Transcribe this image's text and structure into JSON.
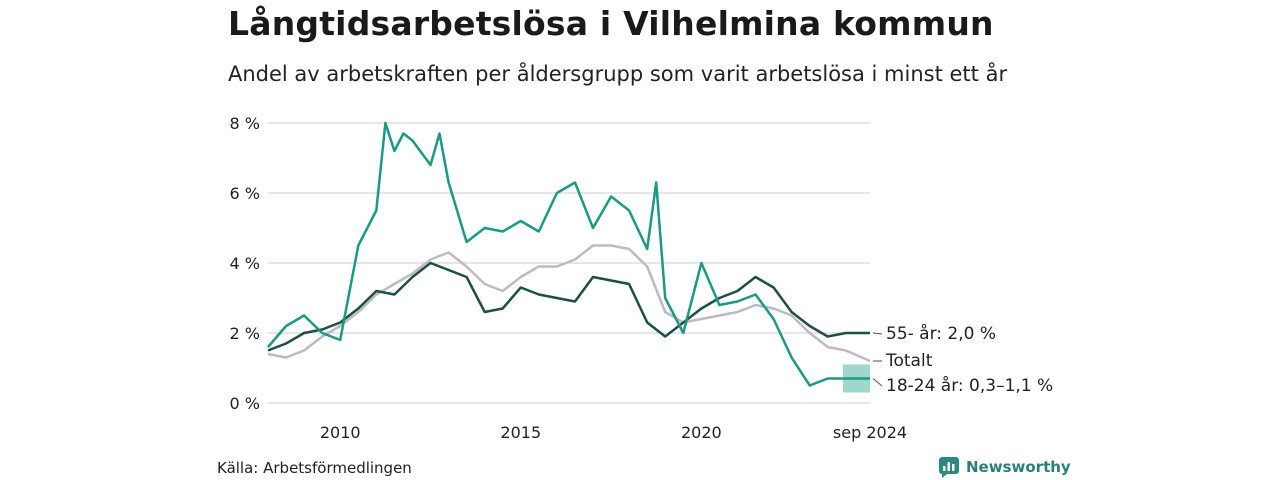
{
  "title": "Långtidsarbetslösa i Vilhelmina kommun",
  "subtitle": "Andel av arbetskraften per åldersgrupp som varit arbetslösa i minst ett år",
  "source": "Källa: Arbetsförmedlingen",
  "brand": {
    "name": "Newsworthy",
    "icon": "newsworthy-logo-icon",
    "color": "#2a8a80"
  },
  "colors": {
    "youth": "#1a9a85",
    "senior": "#1e4f44",
    "total": "#bdbac4",
    "band": "#8fcfc3",
    "grid": "#d6d6d6"
  },
  "chart_data": {
    "type": "line",
    "ylim": [
      0,
      8
    ],
    "yticks": [
      0,
      2,
      4,
      6,
      8
    ],
    "ytick_labels": [
      "0 %",
      "2 %",
      "4 %",
      "6 %",
      "8 %"
    ],
    "xlim": [
      2008.0,
      2024.67
    ],
    "xticks": [
      2010,
      2015,
      2020,
      2024.67
    ],
    "xtick_labels": [
      "2010",
      "2015",
      "2020",
      "sep 2024"
    ],
    "grid": true,
    "series": [
      {
        "key": "total",
        "name": "Totalt",
        "end_label": "Totalt",
        "x": [
          2008.0,
          2008.5,
          2009.0,
          2009.5,
          2010.0,
          2010.5,
          2011.0,
          2011.5,
          2012.0,
          2012.5,
          2013.0,
          2013.5,
          2014.0,
          2014.5,
          2015.0,
          2015.5,
          2016.0,
          2016.5,
          2017.0,
          2017.5,
          2018.0,
          2018.5,
          2019.0,
          2019.5,
          2020.0,
          2020.5,
          2021.0,
          2021.5,
          2022.0,
          2022.5,
          2023.0,
          2023.5,
          2024.0,
          2024.67
        ],
        "y": [
          1.4,
          1.3,
          1.5,
          1.9,
          2.2,
          2.6,
          3.1,
          3.4,
          3.7,
          4.1,
          4.3,
          3.9,
          3.4,
          3.2,
          3.6,
          3.9,
          3.9,
          4.1,
          4.5,
          4.5,
          4.4,
          3.9,
          2.6,
          2.3,
          2.4,
          2.5,
          2.6,
          2.8,
          2.7,
          2.5,
          2.0,
          1.6,
          1.5,
          1.2
        ]
      },
      {
        "key": "senior",
        "name": "55- år",
        "end_label": "55- år: 2,0 %",
        "x": [
          2008.0,
          2008.5,
          2009.0,
          2009.5,
          2010.0,
          2010.5,
          2011.0,
          2011.5,
          2012.0,
          2012.5,
          2013.0,
          2013.5,
          2014.0,
          2014.5,
          2015.0,
          2015.5,
          2016.0,
          2016.5,
          2017.0,
          2017.5,
          2018.0,
          2018.5,
          2019.0,
          2019.5,
          2020.0,
          2020.5,
          2021.0,
          2021.5,
          2022.0,
          2022.5,
          2023.0,
          2023.5,
          2024.0,
          2024.67
        ],
        "y": [
          1.5,
          1.7,
          2.0,
          2.1,
          2.3,
          2.7,
          3.2,
          3.1,
          3.6,
          4.0,
          3.8,
          3.6,
          2.6,
          2.7,
          3.3,
          3.1,
          3.0,
          2.9,
          3.6,
          3.5,
          3.4,
          2.3,
          1.9,
          2.3,
          2.7,
          3.0,
          3.2,
          3.6,
          3.3,
          2.6,
          2.2,
          1.9,
          2.0,
          2.0
        ]
      },
      {
        "key": "youth",
        "name": "18-24 år",
        "end_label": "18-24 år: 0,3–1,1 %",
        "x": [
          2008.0,
          2008.5,
          2009.0,
          2009.5,
          2010.0,
          2010.5,
          2011.0,
          2011.25,
          2011.5,
          2011.75,
          2012.0,
          2012.5,
          2012.75,
          2013.0,
          2013.5,
          2014.0,
          2014.5,
          2015.0,
          2015.5,
          2016.0,
          2016.5,
          2017.0,
          2017.5,
          2018.0,
          2018.5,
          2018.75,
          2019.0,
          2019.5,
          2020.0,
          2020.5,
          2021.0,
          2021.5,
          2022.0,
          2022.5,
          2023.0,
          2023.5,
          2024.0,
          2024.67
        ],
        "y": [
          1.6,
          2.2,
          2.5,
          2.0,
          1.8,
          4.5,
          5.5,
          8.0,
          7.2,
          7.7,
          7.5,
          6.8,
          7.7,
          6.3,
          4.6,
          5.0,
          4.9,
          5.2,
          4.9,
          6.0,
          6.3,
          5.0,
          5.9,
          5.5,
          4.4,
          6.3,
          3.0,
          2.0,
          4.0,
          2.8,
          2.9,
          3.1,
          2.4,
          1.3,
          0.5,
          0.7,
          0.7,
          0.7
        ]
      }
    ],
    "band": {
      "series": "18-24 år",
      "x_start": 2023.92,
      "low": 0.3,
      "high": 1.1
    }
  }
}
